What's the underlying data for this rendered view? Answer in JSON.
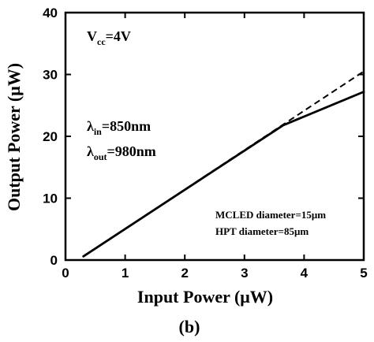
{
  "chart_data": {
    "type": "line",
    "xlabel": "Input Power (μW)",
    "ylabel": "Output Power (μW)",
    "xlim": [
      0,
      5
    ],
    "ylim": [
      0,
      40
    ],
    "xticks": [
      "0",
      "1",
      "2",
      "3",
      "4",
      "5"
    ],
    "yticks": [
      "0",
      "10",
      "20",
      "30",
      "40"
    ],
    "grid": false,
    "legend": "none",
    "series": [
      {
        "style": "solid",
        "color": "#000000",
        "x": [
          0.3,
          3.65,
          5.0
        ],
        "y": [
          0.6,
          21.8,
          27.2
        ]
      },
      {
        "style": "dashed",
        "color": "#000000",
        "x": [
          0.3,
          5.0
        ],
        "y": [
          0.6,
          30.5
        ]
      }
    ],
    "annotations": {
      "vcc": {
        "main": "V",
        "sub": "cc",
        "rest": "=4V"
      },
      "lambda_in": {
        "main": "λ",
        "sub": "in",
        "rest": "=850nm"
      },
      "lambda_out": {
        "main": "λ",
        "sub": "out",
        "rest": "=980nm"
      },
      "mcled": "MCLED diameter=15μm",
      "hpt": "HPT diameter=85μm"
    },
    "panel_label": "(b)"
  }
}
